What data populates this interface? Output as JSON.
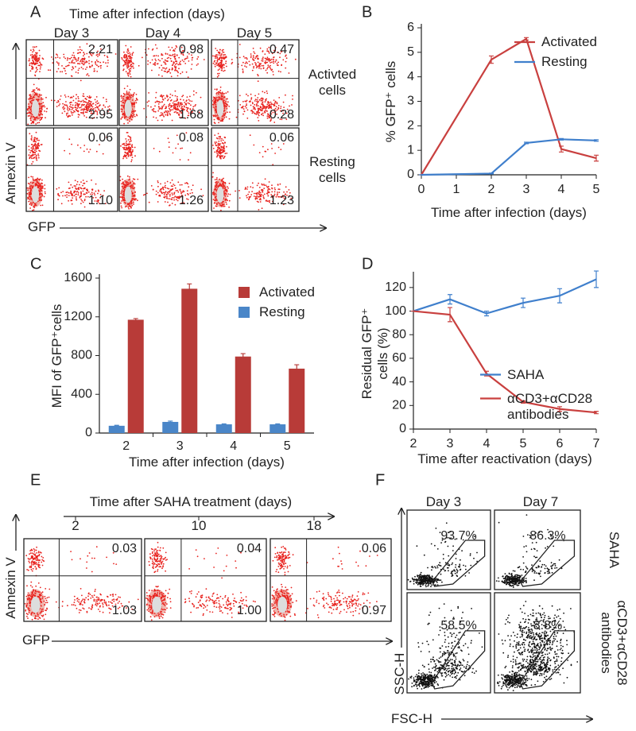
{
  "chart_data": [
    {
      "type": "line",
      "letter": "B",
      "xlabel": "Time after infection (days)",
      "ylabel": "% GFP⁺ cells",
      "x": [
        0,
        2,
        3,
        4,
        5
      ],
      "xlim": [
        0,
        5
      ],
      "xticks": [
        0,
        1,
        2,
        3,
        4,
        5
      ],
      "ylim": [
        0,
        6
      ],
      "yticks": [
        0,
        1,
        2,
        3,
        4,
        5,
        6
      ],
      "legend": "upper right",
      "series": [
        {
          "name": "Activated",
          "color": "#c9403f",
          "values": [
            0,
            4.7,
            5.55,
            1.05,
            0.68
          ],
          "errors": [
            0,
            0.15,
            0.05,
            0.12,
            0.12
          ]
        },
        {
          "name": "Resting",
          "color": "#3f7fcc",
          "values": [
            0,
            0.05,
            1.3,
            1.45,
            1.4
          ],
          "errors": [
            0,
            0.02,
            0.03,
            0.03,
            0.03
          ]
        }
      ]
    },
    {
      "type": "bar",
      "letter": "C",
      "xlabel": "Time after infection (days)",
      "ylabel": "MFI of GFP⁺cells",
      "categories": [
        "2",
        "3",
        "4",
        "5"
      ],
      "ylim": [
        0,
        1600
      ],
      "yticks": [
        0,
        400,
        800,
        1200,
        1600
      ],
      "legend": "upper right",
      "series": [
        {
          "name": "Activated",
          "color": "#b83b38",
          "values": [
            1170,
            1490,
            790,
            665
          ],
          "errors": [
            12,
            50,
            30,
            40
          ]
        },
        {
          "name": "Resting",
          "color": "#4a86c8",
          "values": [
            75,
            115,
            90,
            90
          ],
          "errors": [
            5,
            8,
            5,
            5
          ]
        }
      ]
    },
    {
      "type": "line",
      "letter": "D",
      "xlabel": "Time after reactivation (days)",
      "ylabel": "Residual GFP⁺ cells (%)",
      "x": [
        2,
        3,
        4,
        5,
        6,
        7
      ],
      "xlim": [
        2,
        7
      ],
      "xticks": [
        2,
        3,
        4,
        5,
        6,
        7
      ],
      "ylim": [
        0,
        130
      ],
      "yticks": [
        0,
        20,
        40,
        60,
        80,
        100,
        120
      ],
      "legend": "center right",
      "series": [
        {
          "name": "SAHA",
          "color": "#3f7fcc",
          "values": [
            100,
            110,
            98,
            107,
            113,
            127
          ],
          "errors": [
            0,
            4,
            2,
            4,
            6,
            7
          ]
        },
        {
          "name": "αCD3+αCD28 antibodies",
          "color": "#c9403f",
          "values": [
            100,
            97,
            47,
            23,
            17,
            14
          ],
          "errors": [
            0,
            6,
            2,
            1,
            2,
            1
          ]
        }
      ]
    }
  ],
  "flow_panels": [
    {
      "letter": "A",
      "title": "Time after infection (days)",
      "columns": [
        "Day 3",
        "Day 4",
        "Day 5"
      ],
      "rows": [
        {
          "label": "Activted cells",
          "upper": [
            "2.21",
            "0.98",
            "0.47"
          ],
          "lower": [
            "2.95",
            "1.68",
            "0.28"
          ]
        },
        {
          "label": "Resting cells",
          "upper": [
            "0.06",
            "0.08",
            "0.06"
          ],
          "lower": [
            "1.10",
            "1.26",
            "1.23"
          ]
        }
      ],
      "ylabel": "Annexin V",
      "xlabel": "GFP"
    },
    {
      "letter": "E",
      "title": "Time after SAHA treatment (days)",
      "columns": [
        "2",
        "10",
        "18"
      ],
      "rows": [
        {
          "upper": [
            "0.03",
            "0.04",
            "0.06"
          ],
          "lower": [
            "1.03",
            "1.00",
            "0.97"
          ]
        }
      ],
      "ylabel": "Annexin V",
      "xlabel": "GFP"
    },
    {
      "letter": "F",
      "columns": [
        "Day 3",
        "Day 7"
      ],
      "rows": [
        {
          "label": "SAHA",
          "values": [
            "93.7%",
            "86.3%"
          ]
        },
        {
          "label": "αCD3+αCD28 antibodies",
          "values": [
            "58.5%",
            "8.8%"
          ]
        }
      ],
      "ylabel": "SSC-H",
      "xlabel": "FSC-H"
    }
  ]
}
